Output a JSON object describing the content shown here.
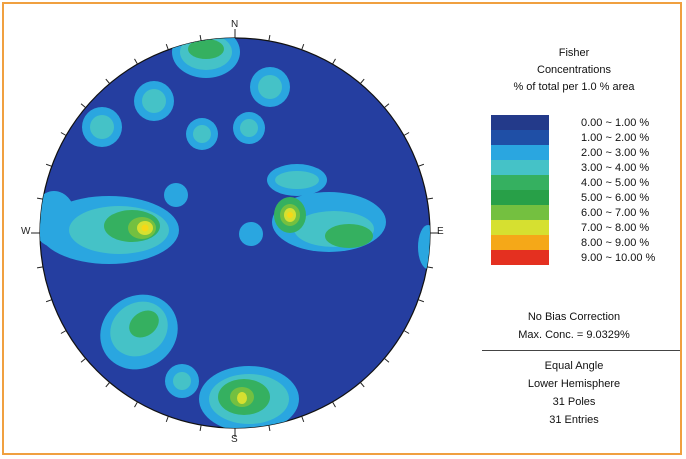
{
  "compass": {
    "north": "N",
    "south": "S",
    "east": "E",
    "west": "W"
  },
  "legend": {
    "title_1": "Fisher",
    "title_2": "Concentrations",
    "title_3": "% of total per 1.0 % area",
    "colors": [
      "#233a8a",
      "#1f4fa6",
      "#2aa6e0",
      "#45c2c7",
      "#35b060",
      "#28a048",
      "#74c040",
      "#d6e030",
      "#f5a818",
      "#e43020"
    ],
    "ranges": [
      "0.00 ~  1.00 %",
      "1.00 ~  2.00 %",
      "2.00 ~  3.00 %",
      "3.00 ~  4.00 %",
      "4.00 ~  5.00 %",
      "5.00 ~  6.00 %",
      "6.00 ~  7.00 %",
      "7.00 ~  8.00 %",
      "8.00 ~  9.00 %",
      "9.00 ~ 10.00 %"
    ]
  },
  "info": {
    "bias": "No Bias Correction",
    "max_conc": "Max. Conc. = 9.0329%",
    "projection": "Equal Angle",
    "hemisphere": "Lower Hemisphere",
    "poles": "31 Poles",
    "entries": "31 Entries"
  },
  "colors": {
    "background_net": "#253ea0",
    "frame_border": "#f0a040"
  }
}
